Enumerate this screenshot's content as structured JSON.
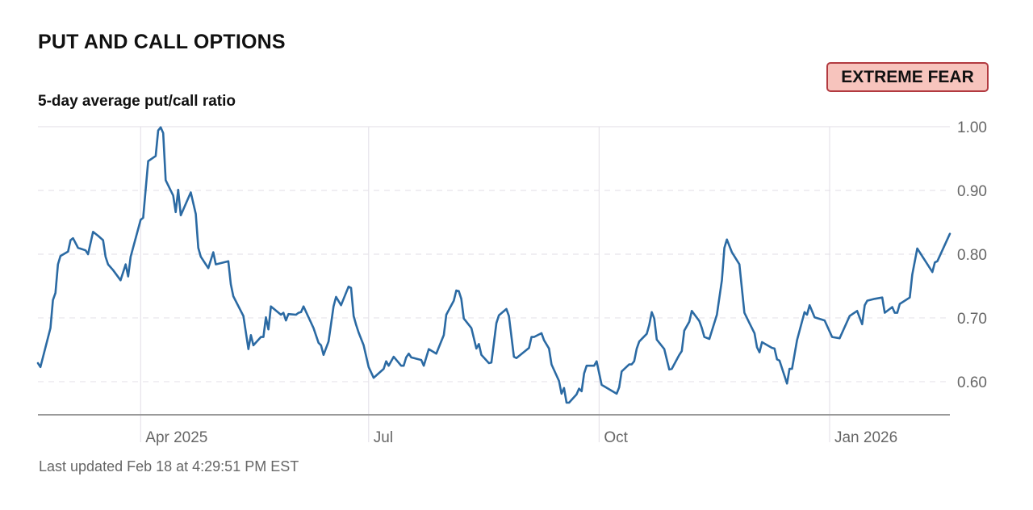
{
  "header": {
    "title": "PUT AND CALL OPTIONS",
    "subtitle": "5-day average put/call ratio",
    "badge": "EXTREME FEAR"
  },
  "footer": {
    "last_updated": "Last updated Feb 18 at 4:29:51 PM EST"
  },
  "colors": {
    "line": "#2b6aa3",
    "badge_bg": "#f7c4bd",
    "badge_border": "#b23a40"
  },
  "chart_data": {
    "type": "line",
    "title": "5-day average put/call ratio",
    "xlim": [
      "2025-02-19",
      "2026-02-18"
    ],
    "ylim": [
      0.548,
      1.0
    ],
    "y_ticks": [
      "0.60",
      "0.70",
      "0.80",
      "0.90",
      "1.00"
    ],
    "y_tick_values": [
      0.6,
      0.7,
      0.8,
      0.9,
      1.0
    ],
    "x_ticks": [
      {
        "date": "2025-04-01",
        "label": "Apr 2025"
      },
      {
        "date": "2025-07-01",
        "label": "Jul"
      },
      {
        "date": "2025-10-01",
        "label": "Oct"
      },
      {
        "date": "2026-01-01",
        "label": "Jan 2026"
      }
    ],
    "grid": true,
    "y_axis_side": "right",
    "series": [
      {
        "points": [
          [
            "2025-02-19",
            0.629
          ],
          [
            "2025-02-20",
            0.623
          ],
          [
            "2025-02-24",
            0.684
          ],
          [
            "2025-02-25",
            0.728
          ],
          [
            "2025-02-26",
            0.739
          ],
          [
            "2025-02-27",
            0.784
          ],
          [
            "2025-02-28",
            0.797
          ],
          [
            "2025-03-03",
            0.804
          ],
          [
            "2025-03-04",
            0.822
          ],
          [
            "2025-03-05",
            0.825
          ],
          [
            "2025-03-07",
            0.81
          ],
          [
            "2025-03-10",
            0.806
          ],
          [
            "2025-03-11",
            0.8
          ],
          [
            "2025-03-13",
            0.835
          ],
          [
            "2025-03-15",
            0.829
          ],
          [
            "2025-03-17",
            0.822
          ],
          [
            "2025-03-18",
            0.796
          ],
          [
            "2025-03-19",
            0.784
          ],
          [
            "2025-03-21",
            0.775
          ],
          [
            "2025-03-24",
            0.759
          ],
          [
            "2025-03-26",
            0.784
          ],
          [
            "2025-03-27",
            0.765
          ],
          [
            "2025-03-28",
            0.796
          ],
          [
            "2025-04-01",
            0.854
          ],
          [
            "2025-04-02",
            0.857
          ],
          [
            "2025-04-04",
            0.946
          ],
          [
            "2025-04-07",
            0.954
          ],
          [
            "2025-04-08",
            0.994
          ],
          [
            "2025-04-09",
            0.999
          ],
          [
            "2025-04-10",
            0.99
          ],
          [
            "2025-04-11",
            0.916
          ],
          [
            "2025-04-14",
            0.892
          ],
          [
            "2025-04-15",
            0.866
          ],
          [
            "2025-04-16",
            0.901
          ],
          [
            "2025-04-17",
            0.861
          ],
          [
            "2025-04-21",
            0.897
          ],
          [
            "2025-04-23",
            0.863
          ],
          [
            "2025-04-24",
            0.81
          ],
          [
            "2025-04-25",
            0.796
          ],
          [
            "2025-04-28",
            0.778
          ],
          [
            "2025-04-30",
            0.803
          ],
          [
            "2025-05-01",
            0.784
          ],
          [
            "2025-05-06",
            0.789
          ],
          [
            "2025-05-07",
            0.753
          ],
          [
            "2025-05-08",
            0.734
          ],
          [
            "2025-05-12",
            0.703
          ],
          [
            "2025-05-14",
            0.651
          ],
          [
            "2025-05-15",
            0.673
          ],
          [
            "2025-05-16",
            0.657
          ],
          [
            "2025-05-19",
            0.67
          ],
          [
            "2025-05-20",
            0.67
          ],
          [
            "2025-05-21",
            0.701
          ],
          [
            "2025-05-22",
            0.682
          ],
          [
            "2025-05-23",
            0.718
          ],
          [
            "2025-05-27",
            0.705
          ],
          [
            "2025-05-28",
            0.708
          ],
          [
            "2025-05-29",
            0.696
          ],
          [
            "2025-05-30",
            0.706
          ],
          [
            "2025-06-02",
            0.705
          ],
          [
            "2025-06-03",
            0.708
          ],
          [
            "2025-06-04",
            0.709
          ],
          [
            "2025-06-05",
            0.718
          ],
          [
            "2025-06-09",
            0.684
          ],
          [
            "2025-06-11",
            0.661
          ],
          [
            "2025-06-12",
            0.657
          ],
          [
            "2025-06-13",
            0.642
          ],
          [
            "2025-06-15",
            0.663
          ],
          [
            "2025-06-17",
            0.718
          ],
          [
            "2025-06-18",
            0.733
          ],
          [
            "2025-06-20",
            0.72
          ],
          [
            "2025-06-23",
            0.749
          ],
          [
            "2025-06-24",
            0.747
          ],
          [
            "2025-06-25",
            0.703
          ],
          [
            "2025-06-26",
            0.689
          ],
          [
            "2025-06-27",
            0.677
          ],
          [
            "2025-06-29",
            0.657
          ],
          [
            "2025-07-01",
            0.623
          ],
          [
            "2025-07-03",
            0.606
          ],
          [
            "2025-07-07",
            0.62
          ],
          [
            "2025-07-08",
            0.632
          ],
          [
            "2025-07-09",
            0.625
          ],
          [
            "2025-07-11",
            0.639
          ],
          [
            "2025-07-14",
            0.625
          ],
          [
            "2025-07-15",
            0.625
          ],
          [
            "2025-07-16",
            0.638
          ],
          [
            "2025-07-17",
            0.644
          ],
          [
            "2025-07-18",
            0.638
          ],
          [
            "2025-07-22",
            0.634
          ],
          [
            "2025-07-23",
            0.625
          ],
          [
            "2025-07-25",
            0.651
          ],
          [
            "2025-07-28",
            0.644
          ],
          [
            "2025-07-31",
            0.673
          ],
          [
            "2025-08-01",
            0.705
          ],
          [
            "2025-08-04",
            0.727
          ],
          [
            "2025-08-05",
            0.743
          ],
          [
            "2025-08-06",
            0.742
          ],
          [
            "2025-08-07",
            0.73
          ],
          [
            "2025-08-08",
            0.699
          ],
          [
            "2025-08-11",
            0.684
          ],
          [
            "2025-08-13",
            0.652
          ],
          [
            "2025-08-14",
            0.659
          ],
          [
            "2025-08-15",
            0.642
          ],
          [
            "2025-08-18",
            0.629
          ],
          [
            "2025-08-19",
            0.63
          ],
          [
            "2025-08-21",
            0.692
          ],
          [
            "2025-08-22",
            0.704
          ],
          [
            "2025-08-25",
            0.714
          ],
          [
            "2025-08-26",
            0.703
          ],
          [
            "2025-08-28",
            0.639
          ],
          [
            "2025-08-29",
            0.637
          ],
          [
            "2025-09-03",
            0.653
          ],
          [
            "2025-09-04",
            0.67
          ],
          [
            "2025-09-05",
            0.67
          ],
          [
            "2025-09-08",
            0.676
          ],
          [
            "2025-09-09",
            0.665
          ],
          [
            "2025-09-11",
            0.652
          ],
          [
            "2025-09-12",
            0.627
          ],
          [
            "2025-09-15",
            0.601
          ],
          [
            "2025-09-16",
            0.581
          ],
          [
            "2025-09-17",
            0.59
          ],
          [
            "2025-09-18",
            0.567
          ],
          [
            "2025-09-19",
            0.567
          ],
          [
            "2025-09-22",
            0.58
          ],
          [
            "2025-09-23",
            0.589
          ],
          [
            "2025-09-24",
            0.585
          ],
          [
            "2025-09-25",
            0.613
          ],
          [
            "2025-09-26",
            0.625
          ],
          [
            "2025-09-29",
            0.625
          ],
          [
            "2025-09-30",
            0.632
          ],
          [
            "2025-10-02",
            0.595
          ],
          [
            "2025-10-08",
            0.581
          ],
          [
            "2025-10-09",
            0.591
          ],
          [
            "2025-10-10",
            0.616
          ],
          [
            "2025-10-13",
            0.627
          ],
          [
            "2025-10-14",
            0.627
          ],
          [
            "2025-10-15",
            0.632
          ],
          [
            "2025-10-16",
            0.652
          ],
          [
            "2025-10-17",
            0.663
          ],
          [
            "2025-10-20",
            0.675
          ],
          [
            "2025-10-21",
            0.689
          ],
          [
            "2025-10-22",
            0.709
          ],
          [
            "2025-10-23",
            0.699
          ],
          [
            "2025-10-24",
            0.666
          ],
          [
            "2025-10-27",
            0.651
          ],
          [
            "2025-10-29",
            0.619
          ],
          [
            "2025-10-30",
            0.62
          ],
          [
            "2025-11-02",
            0.642
          ],
          [
            "2025-11-03",
            0.648
          ],
          [
            "2025-11-04",
            0.68
          ],
          [
            "2025-11-06",
            0.694
          ],
          [
            "2025-11-07",
            0.711
          ],
          [
            "2025-11-10",
            0.695
          ],
          [
            "2025-11-11",
            0.684
          ],
          [
            "2025-11-12",
            0.67
          ],
          [
            "2025-11-14",
            0.667
          ],
          [
            "2025-11-17",
            0.705
          ],
          [
            "2025-11-19",
            0.759
          ],
          [
            "2025-11-20",
            0.81
          ],
          [
            "2025-11-21",
            0.823
          ],
          [
            "2025-11-23",
            0.803
          ],
          [
            "2025-11-26",
            0.784
          ],
          [
            "2025-11-28",
            0.708
          ],
          [
            "2025-11-30",
            0.692
          ],
          [
            "2025-12-02",
            0.676
          ],
          [
            "2025-12-03",
            0.654
          ],
          [
            "2025-12-04",
            0.646
          ],
          [
            "2025-12-05",
            0.662
          ],
          [
            "2025-12-09",
            0.653
          ],
          [
            "2025-12-10",
            0.652
          ],
          [
            "2025-12-11",
            0.635
          ],
          [
            "2025-12-12",
            0.633
          ],
          [
            "2025-12-15",
            0.597
          ],
          [
            "2025-12-16",
            0.62
          ],
          [
            "2025-12-17",
            0.62
          ],
          [
            "2025-12-19",
            0.665
          ],
          [
            "2025-12-22",
            0.709
          ],
          [
            "2025-12-23",
            0.705
          ],
          [
            "2025-12-24",
            0.72
          ],
          [
            "2025-12-26",
            0.701
          ],
          [
            "2025-12-30",
            0.696
          ],
          [
            "2026-01-02",
            0.67
          ],
          [
            "2026-01-05",
            0.668
          ],
          [
            "2026-01-09",
            0.703
          ],
          [
            "2026-01-12",
            0.711
          ],
          [
            "2026-01-14",
            0.69
          ],
          [
            "2026-01-15",
            0.72
          ],
          [
            "2026-01-16",
            0.727
          ],
          [
            "2026-01-19",
            0.73
          ],
          [
            "2026-01-22",
            0.732
          ],
          [
            "2026-01-23",
            0.708
          ],
          [
            "2026-01-26",
            0.717
          ],
          [
            "2026-01-27",
            0.708
          ],
          [
            "2026-01-28",
            0.708
          ],
          [
            "2026-01-29",
            0.722
          ],
          [
            "2026-02-02",
            0.732
          ],
          [
            "2026-02-03",
            0.768
          ],
          [
            "2026-02-05",
            0.809
          ],
          [
            "2026-02-11",
            0.772
          ],
          [
            "2026-02-12",
            0.787
          ],
          [
            "2026-02-13",
            0.789
          ],
          [
            "2026-02-18",
            0.832
          ]
        ]
      }
    ]
  }
}
